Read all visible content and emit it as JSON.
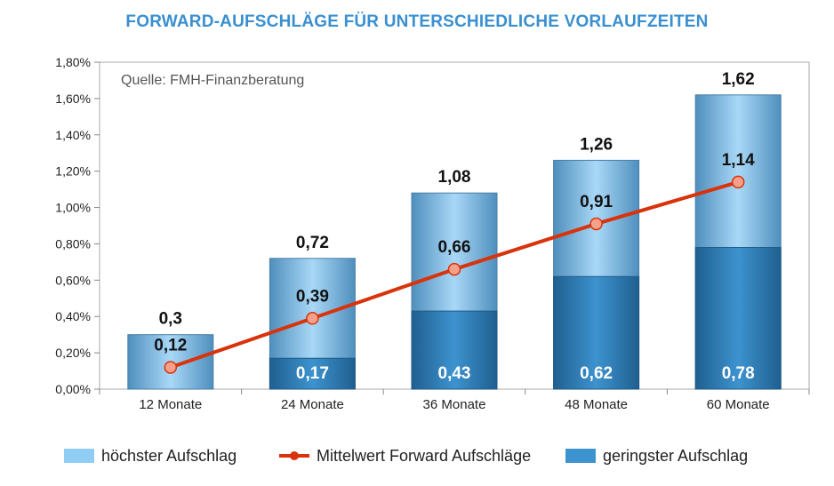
{
  "colors": {
    "title": "#3a8fd0",
    "high_light": "#a9d8f7",
    "high_dark": "#4f8fbd",
    "low_light": "#3d93cf",
    "low_dark": "#1f5f8f",
    "line": "#d8330a",
    "marker": "#f6a08a",
    "axis": "#888888",
    "frame": "#aaaaaa"
  },
  "chart_data": {
    "type": "bar",
    "title": "FORWARD-AUFSCHLÄGE FÜR UNTERSCHIEDLICHE VORLAUFZEITEN",
    "source_note": "Quelle: FMH-Finanzberatung",
    "categories": [
      "12 Monate",
      "24 Monate",
      "36 Monate",
      "48 Monate",
      "60 Monate"
    ],
    "ylim": [
      0,
      1.8
    ],
    "yticks": [
      0,
      0.2,
      0.4,
      0.6,
      0.8,
      1.0,
      1.2,
      1.4,
      1.6,
      1.8
    ],
    "ytick_labels": [
      "0,00%",
      "0,20%",
      "0,40%",
      "0,60%",
      "0,80%",
      "1,00%",
      "1,20%",
      "1,40%",
      "1,60%",
      "1,80%"
    ],
    "series": [
      {
        "name": "höchster  Aufschlag",
        "type": "bar",
        "values": [
          0.3,
          0.72,
          1.08,
          1.26,
          1.62
        ],
        "labels": [
          "0,3",
          "0,72",
          "1,08",
          "1,26",
          "1,62"
        ]
      },
      {
        "name": "geringster Aufschlag",
        "type": "bar",
        "values": [
          0,
          0.17,
          0.43,
          0.62,
          0.78
        ],
        "labels": [
          "",
          "0,17",
          "0,43",
          "0,62",
          "0,78"
        ]
      },
      {
        "name": "Mittelwert Forward Aufschläge",
        "type": "line",
        "values": [
          0.12,
          0.39,
          0.66,
          0.91,
          1.14
        ],
        "labels": [
          "0,12",
          "0,39",
          "0,66",
          "0,91",
          "1,14"
        ]
      }
    ]
  },
  "legend": {
    "high": "höchster  Aufschlag",
    "mean": "Mittelwert Forward Aufschläge",
    "low": "geringster Aufschlag"
  }
}
